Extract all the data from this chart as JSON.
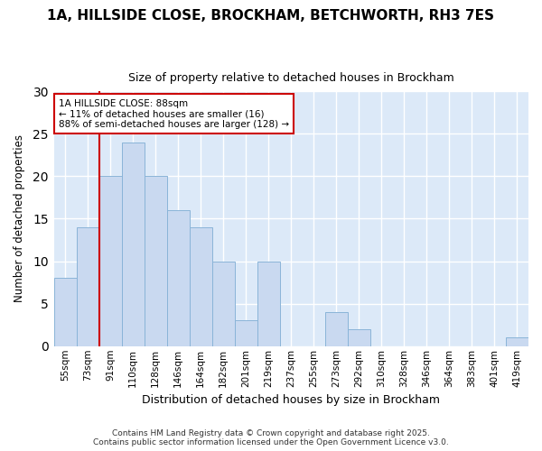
{
  "title_line1": "1A, HILLSIDE CLOSE, BROCKHAM, BETCHWORTH, RH3 7ES",
  "title_line2": "Size of property relative to detached houses in Brockham",
  "categories": [
    "55sqm",
    "73sqm",
    "91sqm",
    "110sqm",
    "128sqm",
    "146sqm",
    "164sqm",
    "182sqm",
    "201sqm",
    "219sqm",
    "237sqm",
    "255sqm",
    "273sqm",
    "292sqm",
    "310sqm",
    "328sqm",
    "346sqm",
    "364sqm",
    "383sqm",
    "401sqm",
    "419sqm"
  ],
  "values": [
    8,
    14,
    20,
    24,
    20,
    16,
    14,
    10,
    3,
    10,
    0,
    0,
    4,
    2,
    0,
    0,
    0,
    0,
    0,
    0,
    1
  ],
  "bar_color": "#c9d9f0",
  "bar_edge_color": "#8ab4d8",
  "xlabel": "Distribution of detached houses by size in Brockham",
  "ylabel": "Number of detached properties",
  "ylim": [
    0,
    30
  ],
  "yticks": [
    0,
    5,
    10,
    15,
    20,
    25,
    30
  ],
  "bg_color": "#dce9f8",
  "grid_color": "#ffffff",
  "vline_x": 2,
  "vline_color": "#cc0000",
  "annotation_text": "1A HILLSIDE CLOSE: 88sqm\n← 11% of detached houses are smaller (16)\n88% of semi-detached houses are larger (128) →",
  "annotation_box_color": "#ffffff",
  "annotation_box_edge": "#cc0000",
  "footer_line1": "Contains HM Land Registry data © Crown copyright and database right 2025.",
  "footer_line2": "Contains public sector information licensed under the Open Government Licence v3.0.",
  "background_color": "#ffffff"
}
